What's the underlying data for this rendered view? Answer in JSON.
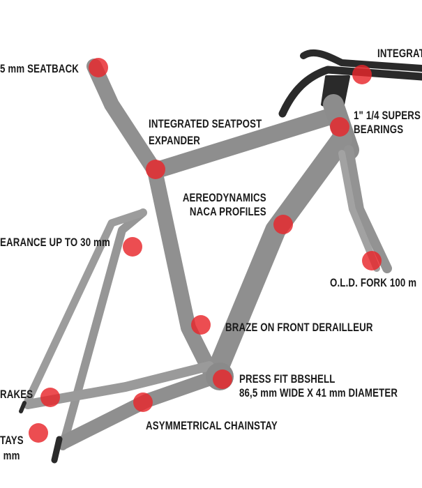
{
  "colors": {
    "marker": "#e8262b",
    "frame": "#8f8f8f",
    "cockpit": "#2a2a2a"
  },
  "labels": {
    "seatback": [
      "5 mm SEATBACK"
    ],
    "integrated_cockpit": [
      "INTEGRAT"
    ],
    "seatpost_expander": [
      "INTEGRATED SEATPOST",
      "EXPANDER"
    ],
    "headset": [
      "1\" 1/4 SUPERS",
      "BEARINGS"
    ],
    "aero": [
      "AEREODYNAMICS",
      "NACA PROFILES"
    ],
    "clearance": [
      "EARANCE UP TO 30 mm"
    ],
    "fork": [
      "O.L.D. FORK 100 m"
    ],
    "derailleur": [
      "BRAZE ON FRONT DERAILLEUR"
    ],
    "bbshell": [
      "PRESS FIT BBSHELL",
      "86,5 mm WIDE X 41 mm DIAMETER"
    ],
    "brakes": [
      "RAKES"
    ],
    "chainstay": [
      "ASYMMETRICAL CHAINSTAY"
    ],
    "stays": [
      "TAYS",
      "mm"
    ]
  }
}
